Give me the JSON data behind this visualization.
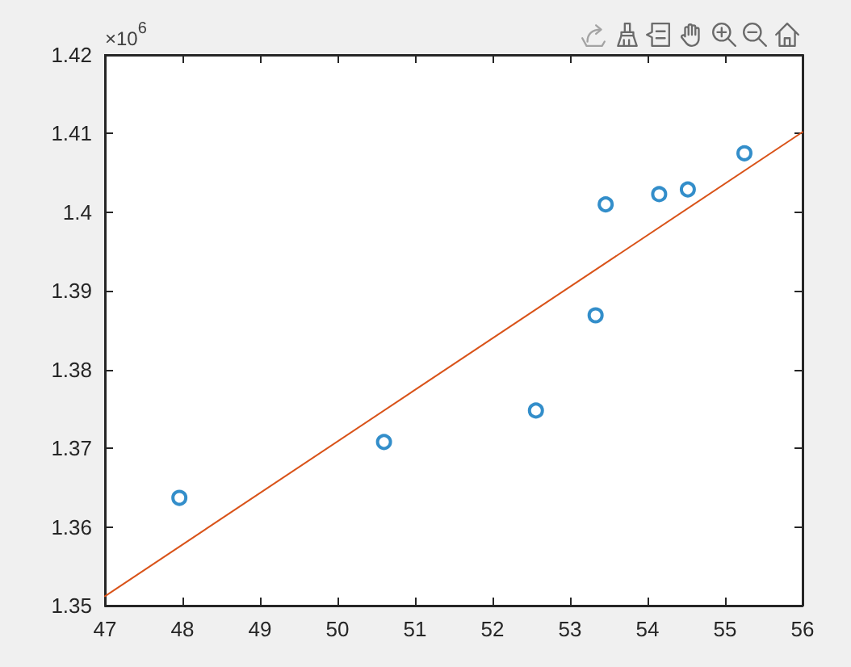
{
  "chart_data": {
    "type": "scatter",
    "annotations": [
      "×10$^{6}$"
    ],
    "xlim": [
      47,
      56
    ],
    "xticks": [
      47,
      48,
      49,
      50,
      51,
      52,
      53,
      54,
      55,
      56
    ],
    "ylim": [
      1.35,
      1.42
    ],
    "yticks": [
      1.35,
      1.36,
      1.37,
      1.38,
      1.39,
      1.4,
      1.41,
      1.42
    ],
    "series": [
      {
        "color": "#0072bd",
        "marker": "circle",
        "x": [
          47.96,
          50.6,
          52.56,
          53.33,
          53.46,
          54.15,
          54.52,
          55.25
        ],
        "values": [
          1.3637,
          1.3708,
          1.3748,
          1.3869,
          1.401,
          1.4023,
          1.4029,
          1.4075
        ]
      },
      {
        "type": "line",
        "color": "#d95319",
        "marker": "none",
        "line_style": "solid",
        "x": [
          47,
          56
        ],
        "values": [
          1.3512,
          1.4102
        ]
      }
    ],
    "grid": false,
    "legend": false
  }
}
